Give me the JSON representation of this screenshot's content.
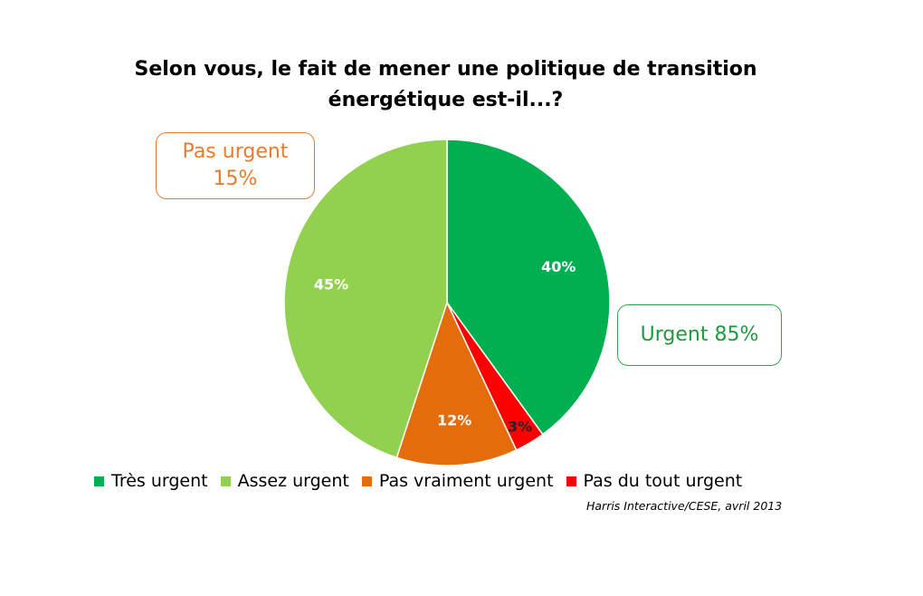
{
  "chart_data": {
    "type": "pie",
    "title_lines": [
      "Selon vous, le fait de mener une politique de transition",
      "énergétique est-il...?"
    ],
    "slices": [
      {
        "label": "Très urgent",
        "value": 40,
        "display": "40%",
        "color": "#00B050"
      },
      {
        "label": "Pas du tout urgent",
        "value": 3,
        "display": "3%",
        "color": "#FF0000"
      },
      {
        "label": "Pas vraiment urgent",
        "value": 12,
        "display": "12%",
        "color": "#E46C0A"
      },
      {
        "label": "Assez urgent",
        "value": 45,
        "display": "45%",
        "color": "#92D050"
      }
    ],
    "legend": [
      {
        "label": "Très urgent",
        "color": "#00B050"
      },
      {
        "label": "Assez urgent",
        "color": "#92D050"
      },
      {
        "label": "Pas vraiment urgent",
        "color": "#E46C0A"
      },
      {
        "label": "Pas du tout urgent",
        "color": "#FF0000"
      }
    ],
    "legend_position": "bottom",
    "annotations": {
      "not_urgent": {
        "line1": "Pas urgent",
        "line2": "15%",
        "color": "#E97A2A"
      },
      "urgent": {
        "text": "Urgent 85%",
        "color": "#1E9A3A"
      }
    },
    "source": "Harris Interactive/CESE, avril 2013"
  }
}
